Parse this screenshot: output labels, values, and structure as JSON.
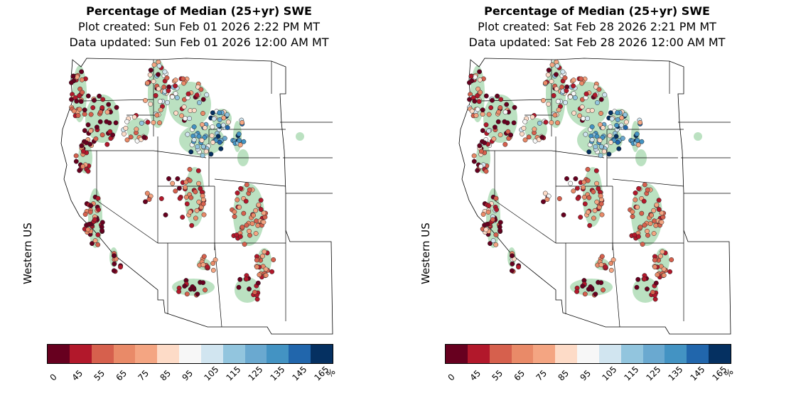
{
  "panels": [
    {
      "title": "Percentage of Median (25+yr) SWE",
      "plot_created": "Plot created: Sun Feb 01 2026  2:22 PM MT",
      "data_updated": "Data updated: Sun Feb 01 2026 12:00 AM MT",
      "region_label": "Western US",
      "tilt": "low"
    },
    {
      "title": "Percentage of Median (25+yr) SWE",
      "plot_created": "Plot created: Sat Feb 28 2026  2:21 PM MT",
      "data_updated": "Data updated: Sat Feb 28 2026 12:00 AM MT",
      "region_label": "Western US",
      "tilt": "higher"
    }
  ],
  "colorbar": {
    "ticks": [
      "0",
      "45",
      "55",
      "65",
      "75",
      "85",
      "95",
      "105",
      "115",
      "125",
      "135",
      "145",
      "165"
    ],
    "unit": "%",
    "colors": [
      "#67001f",
      "#b2182b",
      "#d6604d",
      "#e98a68",
      "#f4a582",
      "#fddbc7",
      "#f7f7f7",
      "#d1e5f0",
      "#92c5de",
      "#6aa9d0",
      "#4393c3",
      "#2166ac",
      "#053061"
    ]
  },
  "map_colors": {
    "snow": "#b7dfbe",
    "border": "#000000"
  }
}
